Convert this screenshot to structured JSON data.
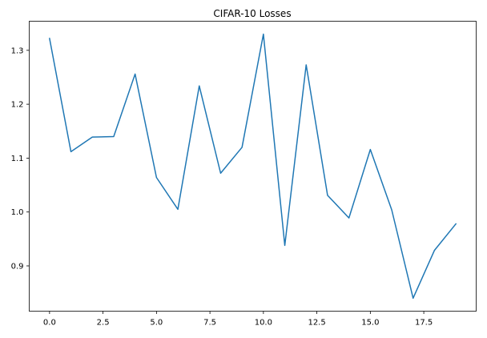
{
  "chart_data": {
    "type": "line",
    "title": "CIFAR-10 Losses",
    "xlabel": "",
    "ylabel": "",
    "xlim": [
      -0.95,
      19.95
    ],
    "ylim": [
      0.816,
      1.354
    ],
    "xticks": [
      0.0,
      2.5,
      5.0,
      7.5,
      10.0,
      12.5,
      15.0,
      17.5
    ],
    "xtick_labels": [
      "0.0",
      "2.5",
      "5.0",
      "7.5",
      "10.0",
      "12.5",
      "15.0",
      "17.5"
    ],
    "yticks": [
      0.9,
      1.0,
      1.1,
      1.2,
      1.3
    ],
    "ytick_labels": [
      "0.9",
      "1.0",
      "1.1",
      "1.2",
      "1.3"
    ],
    "grid": false,
    "series": [
      {
        "color": "#1f77b4",
        "x": [
          0,
          1,
          2,
          3,
          4,
          5,
          6,
          7,
          8,
          9,
          10,
          11,
          12,
          13,
          14,
          15,
          16,
          17,
          18,
          19
        ],
        "y": [
          1.322,
          1.112,
          1.139,
          1.14,
          1.256,
          1.064,
          1.005,
          1.234,
          1.072,
          1.12,
          1.33,
          0.938,
          1.273,
          1.031,
          0.989,
          1.116,
          1.004,
          0.84,
          0.929,
          0.978
        ]
      }
    ]
  }
}
